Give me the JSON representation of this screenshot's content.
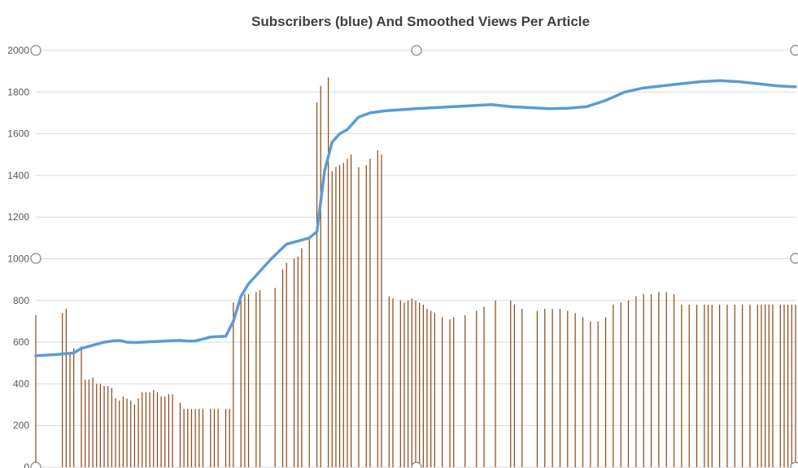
{
  "chart_data": {
    "type": "bar",
    "title": "Subscribers (blue) And Smoothed Views Per Article",
    "xlabel": "",
    "ylabel": "",
    "ylim": [
      0,
      2000
    ],
    "yticks": [
      "0",
      "200",
      "400",
      "600",
      "800",
      "1000",
      "1200",
      "1400",
      "1600",
      "1800",
      "2000"
    ],
    "grid": true,
    "legend": "none",
    "x_range": [
      0,
      200
    ],
    "colors": {
      "bars": "#8B4513",
      "line": "#5B9BD5",
      "grid": "#D9D9D9",
      "title": "#404040"
    },
    "series": [
      {
        "type": "bar",
        "x": [
          0,
          7,
          8,
          9,
          10,
          12,
          13,
          14,
          15,
          16,
          17,
          18,
          19,
          20,
          21,
          22,
          23,
          24,
          25,
          26,
          27,
          28,
          29,
          30,
          31,
          32,
          33,
          34,
          35,
          36,
          38,
          39,
          40,
          41,
          42,
          43,
          44,
          46,
          47,
          48,
          50,
          51,
          52,
          54,
          55,
          56,
          58,
          59,
          63,
          65,
          66,
          68,
          69,
          70,
          72,
          74,
          75,
          77,
          78,
          79,
          80,
          81,
          82,
          83,
          85,
          87,
          88,
          90,
          91,
          93,
          94,
          96,
          97,
          98,
          99,
          100,
          101,
          102,
          103,
          104,
          105,
          107,
          109,
          110,
          113,
          116,
          118,
          121,
          125,
          126,
          128,
          132,
          134,
          136,
          138,
          140,
          142,
          144,
          146,
          148,
          150,
          152,
          154,
          156,
          158,
          160,
          162,
          164,
          166,
          168,
          170,
          172,
          174,
          176,
          177,
          178,
          180,
          182,
          184,
          186,
          188,
          190,
          191,
          192,
          193,
          194,
          196,
          197,
          198,
          199,
          200
        ],
        "values": [
          730,
          740,
          760,
          550,
          570,
          580,
          420,
          420,
          430,
          400,
          400,
          390,
          390,
          380,
          330,
          320,
          340,
          330,
          320,
          300,
          330,
          360,
          360,
          360,
          370,
          360,
          340,
          340,
          350,
          350,
          310,
          280,
          280,
          280,
          280,
          280,
          280,
          280,
          280,
          280,
          280,
          280,
          790,
          800,
          830,
          830,
          840,
          850,
          860,
          950,
          980,
          1000,
          1010,
          1050,
          1100,
          1750,
          1830,
          1870,
          1420,
          1440,
          1450,
          1460,
          1480,
          1500,
          1440,
          1450,
          1480,
          1520,
          1500,
          820,
          810,
          800,
          790,
          800,
          810,
          800,
          790,
          780,
          760,
          750,
          740,
          720,
          710,
          720,
          730,
          750,
          770,
          800,
          800,
          780,
          760,
          750,
          760,
          760,
          760,
          750,
          740,
          720,
          700,
          700,
          720,
          780,
          790,
          800,
          820,
          830,
          830,
          840,
          840,
          830,
          780,
          780,
          780,
          780,
          780,
          780,
          780,
          780,
          780,
          780,
          780,
          780,
          780,
          780,
          780,
          780,
          780,
          780,
          780,
          780,
          780
        ]
      },
      {
        "type": "line",
        "x": [
          0,
          5,
          10,
          12,
          14,
          16,
          18,
          20,
          22,
          24,
          26,
          28,
          30,
          32,
          34,
          36,
          38,
          40,
          42,
          44,
          46,
          48,
          50,
          52,
          54,
          56,
          58,
          62,
          66,
          70,
          72,
          74,
          76,
          78,
          80,
          82,
          85,
          88,
          92,
          100,
          110,
          120,
          125,
          130,
          135,
          140,
          145,
          150,
          155,
          160,
          165,
          170,
          175,
          180,
          185,
          190,
          195,
          200
        ],
        "values": [
          535,
          540,
          548,
          570,
          580,
          590,
          600,
          605,
          608,
          600,
          598,
          600,
          602,
          603,
          605,
          607,
          608,
          605,
          606,
          615,
          625,
          627,
          628,
          700,
          820,
          880,
          920,
          1000,
          1070,
          1090,
          1100,
          1130,
          1420,
          1560,
          1600,
          1620,
          1680,
          1700,
          1710,
          1720,
          1730,
          1740,
          1730,
          1725,
          1720,
          1722,
          1730,
          1760,
          1800,
          1820,
          1830,
          1840,
          1850,
          1855,
          1850,
          1840,
          1830,
          1825
        ]
      }
    ]
  }
}
